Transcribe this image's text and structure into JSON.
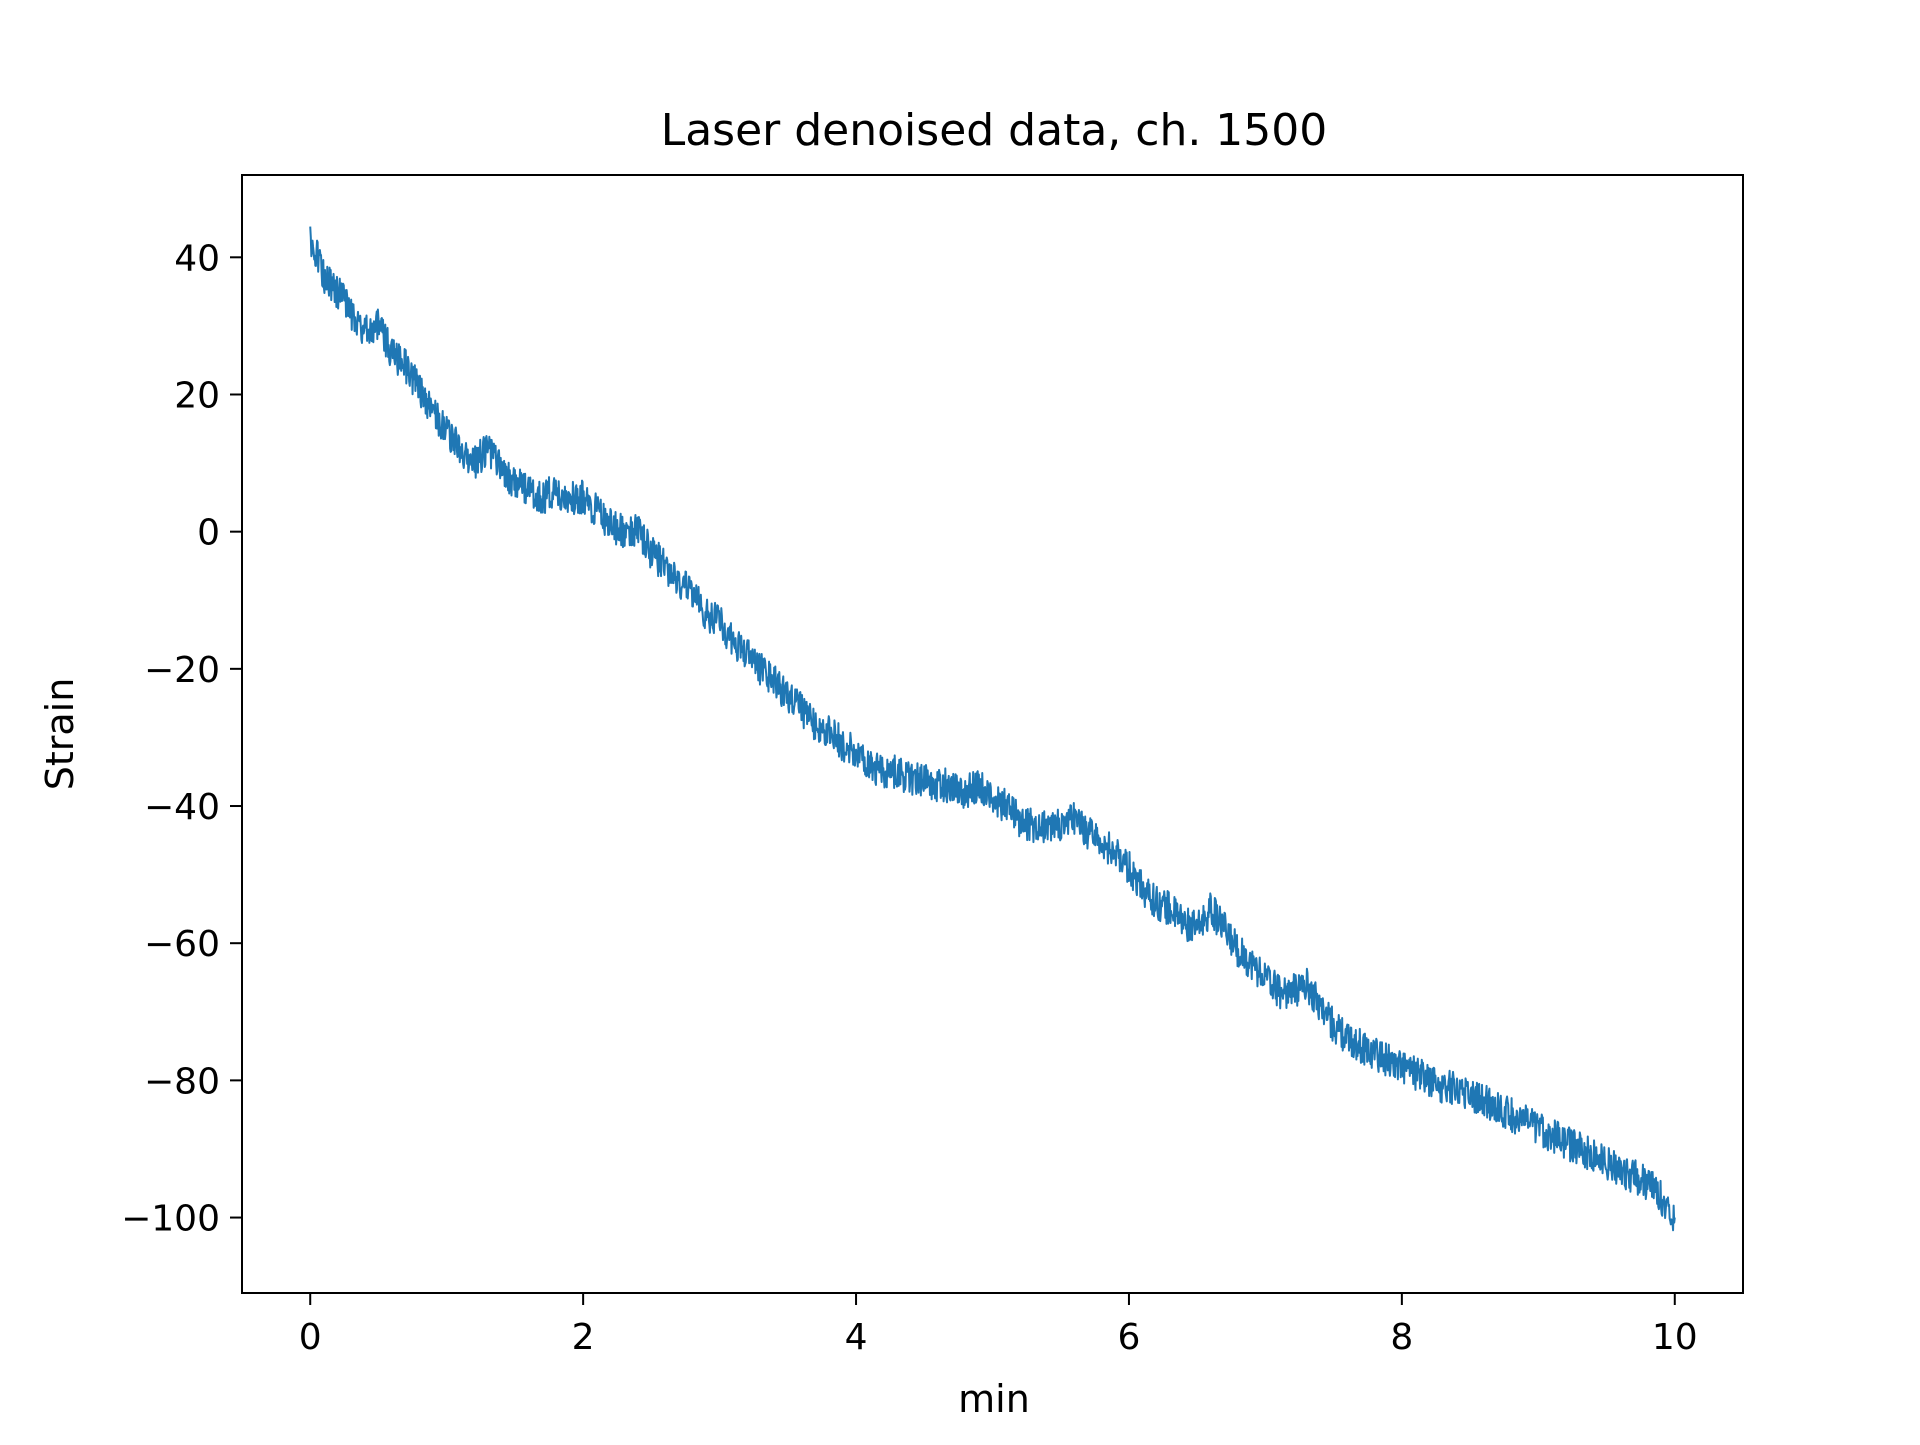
{
  "chart_data": {
    "type": "line",
    "title": "Laser denoised data, ch. 1500",
    "xlabel": "min",
    "ylabel": "Strain",
    "xlim": [
      -0.5,
      10.5
    ],
    "ylim": [
      -111,
      52
    ],
    "xticks": [
      0,
      2,
      4,
      6,
      8,
      10
    ],
    "xtick_labels": [
      "0",
      "2",
      "4",
      "6",
      "8",
      "10"
    ],
    "yticks": [
      40,
      20,
      0,
      -20,
      -40,
      -60,
      -80,
      -100
    ],
    "ytick_labels": [
      "40",
      "20",
      "0",
      "−20",
      "−40",
      "−60",
      "−80",
      "−100"
    ],
    "grid": false,
    "legend": "none",
    "series": [
      {
        "color": "#1f77b4",
        "x": [
          0,
          0.1,
          0.2,
          0.3,
          0.4,
          0.5,
          0.6,
          0.7,
          0.8,
          0.9,
          1.0,
          1.1,
          1.2,
          1.3,
          1.4,
          1.5,
          1.6,
          1.7,
          1.8,
          1.9,
          2.0,
          2.1,
          2.2,
          2.3,
          2.4,
          2.5,
          2.6,
          2.7,
          2.8,
          2.9,
          3.0,
          3.1,
          3.2,
          3.3,
          3.4,
          3.5,
          3.6,
          3.7,
          3.8,
          3.9,
          4.0,
          4.1,
          4.2,
          4.3,
          4.4,
          4.5,
          4.6,
          4.7,
          4.8,
          4.9,
          5.0,
          5.1,
          5.2,
          5.3,
          5.4,
          5.5,
          5.6,
          5.7,
          5.8,
          5.9,
          6.0,
          6.1,
          6.2,
          6.3,
          6.4,
          6.5,
          6.6,
          6.7,
          6.8,
          6.9,
          7.0,
          7.1,
          7.2,
          7.3,
          7.4,
          7.5,
          7.6,
          7.7,
          7.8,
          7.9,
          8.0,
          8.1,
          8.2,
          8.3,
          8.4,
          8.5,
          8.6,
          8.7,
          8.8,
          8.9,
          9.0,
          9.1,
          9.2,
          9.3,
          9.4,
          9.5,
          9.6,
          9.7,
          9.8,
          9.9,
          10.0
        ],
        "y": [
          43,
          37,
          35,
          32,
          29,
          30,
          26,
          24,
          21,
          17,
          15,
          12,
          10,
          12,
          9,
          7,
          6,
          5,
          6,
          5,
          5,
          3,
          1,
          0,
          0,
          -3,
          -5,
          -7,
          -9,
          -12,
          -13,
          -16,
          -18,
          -20,
          -22,
          -24,
          -26,
          -28,
          -29,
          -31,
          -32,
          -34,
          -35,
          -35,
          -36,
          -36,
          -37,
          -37,
          -38,
          -37,
          -39,
          -40,
          -42,
          -43,
          -43,
          -43,
          -42,
          -44,
          -45,
          -47,
          -49,
          -52,
          -54,
          -55,
          -57,
          -58,
          -55,
          -58,
          -61,
          -63,
          -65,
          -67,
          -67,
          -66,
          -69,
          -72,
          -74,
          -75,
          -76,
          -77,
          -78,
          -79,
          -80,
          -81,
          -81,
          -82,
          -83,
          -84,
          -85,
          -86,
          -87,
          -88,
          -89,
          -90,
          -91,
          -92,
          -93,
          -94,
          -95,
          -97,
          -100
        ]
      }
    ]
  }
}
